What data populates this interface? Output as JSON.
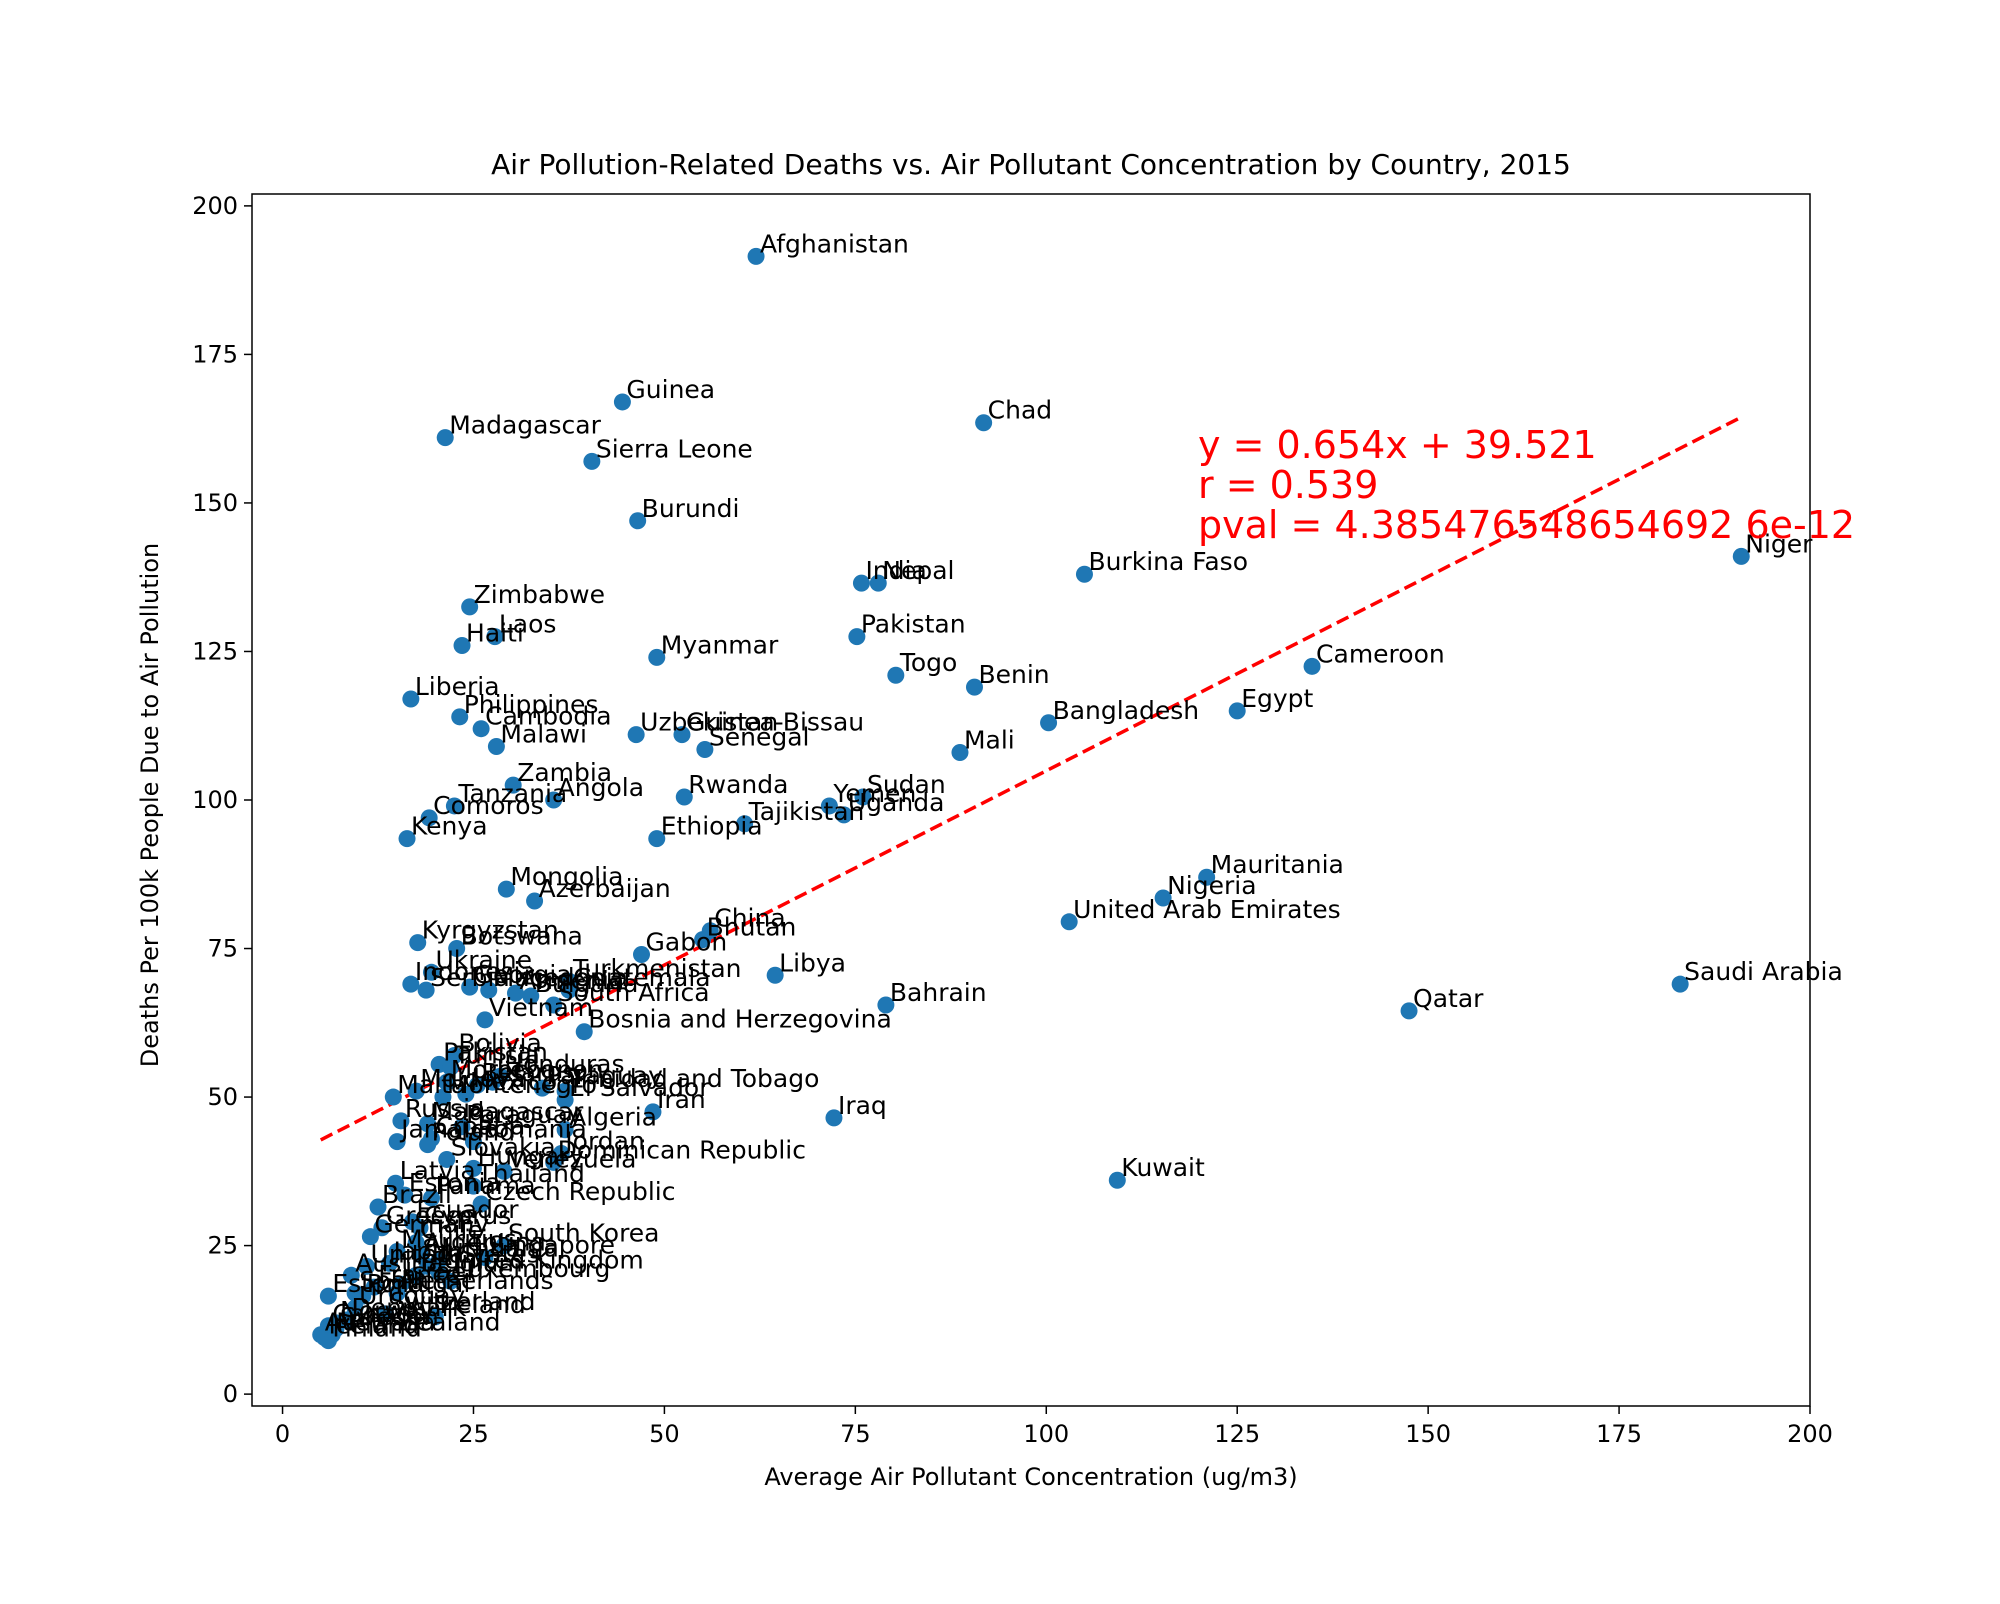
{
  "chart_data": {
    "type": "scatter",
    "title": "Air Pollution-Related Deaths vs. Air Pollutant Concentration by Country, 2015",
    "xlabel": "Average Air Pollutant Concentration (ug/m3)",
    "ylabel": "Deaths Per 100k People Due to Air Pollution",
    "xlim": [
      -4,
      200
    ],
    "ylim": [
      -2,
      202
    ],
    "xticks": [
      0,
      25,
      50,
      75,
      100,
      125,
      150,
      175,
      200
    ],
    "yticks": [
      0,
      25,
      50,
      75,
      100,
      125,
      150,
      175,
      200
    ],
    "grid": false,
    "point_color": "#1f77b4",
    "regression": {
      "slope": 0.654,
      "intercept": 39.521,
      "x_range": [
        5,
        191
      ],
      "color": "#ff0000",
      "style": "dashed",
      "annotation_lines": [
        "y = 0.654x + 39.521",
        "r = 0.539",
        "pval = 4.385476548654692 6e-12"
      ]
    },
    "points": [
      {
        "label": "Afghanistan",
        "x": 62.0,
        "y": 191.5
      },
      {
        "label": "Guinea",
        "x": 44.5,
        "y": 167.0
      },
      {
        "label": "Chad",
        "x": 91.8,
        "y": 163.5
      },
      {
        "label": "Madagascar",
        "x": 21.3,
        "y": 161.0
      },
      {
        "label": "Sierra Leone",
        "x": 40.5,
        "y": 157.0
      },
      {
        "label": "Burundi",
        "x": 46.5,
        "y": 147.0
      },
      {
        "label": "Burkina Faso",
        "x": 105.0,
        "y": 138.0
      },
      {
        "label": "Niger",
        "x": 191.0,
        "y": 141.0
      },
      {
        "label": "India",
        "x": 75.8,
        "y": 136.5
      },
      {
        "label": "Nepal",
        "x": 78.0,
        "y": 136.5
      },
      {
        "label": "Zimbabwe",
        "x": 24.5,
        "y": 132.5
      },
      {
        "label": "Pakistan",
        "x": 75.2,
        "y": 127.5
      },
      {
        "label": "Laos",
        "x": 27.8,
        "y": 127.5
      },
      {
        "label": "Haiti",
        "x": 23.5,
        "y": 126.0
      },
      {
        "label": "Myanmar",
        "x": 49.0,
        "y": 124.0
      },
      {
        "label": "Cameroon",
        "x": 134.8,
        "y": 122.5
      },
      {
        "label": "Togo",
        "x": 80.3,
        "y": 121.0
      },
      {
        "label": "Benin",
        "x": 90.6,
        "y": 119.0
      },
      {
        "label": "Liberia",
        "x": 16.8,
        "y": 117.0
      },
      {
        "label": "Egypt",
        "x": 125.0,
        "y": 115.0
      },
      {
        "label": "Philippines",
        "x": 23.2,
        "y": 114.0
      },
      {
        "label": "Bangladesh",
        "x": 100.3,
        "y": 113.0
      },
      {
        "label": "Cambodia",
        "x": 26.0,
        "y": 112.0
      },
      {
        "label": "Uzbekistan",
        "x": 46.3,
        "y": 111.0
      },
      {
        "label": "Guinea-Bissau",
        "x": 52.3,
        "y": 111.0
      },
      {
        "label": "Malawi",
        "x": 28.0,
        "y": 109.0
      },
      {
        "label": "Senegal",
        "x": 55.3,
        "y": 108.5
      },
      {
        "label": "Mali",
        "x": 88.7,
        "y": 108.0
      },
      {
        "label": "Zambia",
        "x": 30.2,
        "y": 102.5
      },
      {
        "label": "Sudan",
        "x": 76.0,
        "y": 100.5
      },
      {
        "label": "Rwanda",
        "x": 52.6,
        "y": 100.5
      },
      {
        "label": "Angola",
        "x": 35.5,
        "y": 100.0
      },
      {
        "label": "Yemen",
        "x": 71.6,
        "y": 99.0
      },
      {
        "label": "Tanzania",
        "x": 22.5,
        "y": 99.0
      },
      {
        "label": "Uganda",
        "x": 73.5,
        "y": 97.5
      },
      {
        "label": "Comoros",
        "x": 19.2,
        "y": 97.0
      },
      {
        "label": "Tajikistan",
        "x": 60.5,
        "y": 96.0
      },
      {
        "label": "Ethiopia",
        "x": 49.0,
        "y": 93.5
      },
      {
        "label": "Kenya",
        "x": 16.3,
        "y": 93.5
      },
      {
        "label": "Mauritania",
        "x": 121.0,
        "y": 87.0
      },
      {
        "label": "Mongolia",
        "x": 29.3,
        "y": 85.0
      },
      {
        "label": "Nigeria",
        "x": 115.3,
        "y": 83.5
      },
      {
        "label": "Azerbaijan",
        "x": 33.0,
        "y": 83.0
      },
      {
        "label": "United Arab Emirates",
        "x": 103.0,
        "y": 79.5
      },
      {
        "label": "China",
        "x": 56.0,
        "y": 78.0
      },
      {
        "label": "Bhutan",
        "x": 55.0,
        "y": 76.5
      },
      {
        "label": "Kyrgyzstan",
        "x": 17.7,
        "y": 76.0
      },
      {
        "label": "Botswana",
        "x": 22.8,
        "y": 75.0
      },
      {
        "label": "Gabon",
        "x": 47.0,
        "y": 74.0
      },
      {
        "label": "Ukraine",
        "x": 19.5,
        "y": 71.0
      },
      {
        "label": "Libya",
        "x": 64.5,
        "y": 70.5
      },
      {
        "label": "Turkmenistan",
        "x": 37.5,
        "y": 69.5
      },
      {
        "label": "Indonesia",
        "x": 16.8,
        "y": 69.0
      },
      {
        "label": "Saudi Arabia",
        "x": 183.0,
        "y": 69.0
      },
      {
        "label": "Georgia",
        "x": 24.5,
        "y": 68.5
      },
      {
        "label": "Serbia",
        "x": 18.8,
        "y": 68.0
      },
      {
        "label": "Macedonia",
        "x": 27.0,
        "y": 68.0
      },
      {
        "label": "Armenia",
        "x": 30.5,
        "y": 67.5
      },
      {
        "label": "Bulgaria",
        "x": 32.5,
        "y": 67.0
      },
      {
        "label": "Guatemala",
        "x": 37.5,
        "y": 68.0
      },
      {
        "label": "South Africa",
        "x": 35.5,
        "y": 65.5
      },
      {
        "label": "Bahrain",
        "x": 79.0,
        "y": 65.5
      },
      {
        "label": "Qatar",
        "x": 147.5,
        "y": 64.5
      },
      {
        "label": "Vietnam",
        "x": 26.5,
        "y": 63.0
      },
      {
        "label": "Bosnia and Herzegovina",
        "x": 39.5,
        "y": 61.0
      },
      {
        "label": "Bolivia",
        "x": 22.5,
        "y": 57.0
      },
      {
        "label": "Pakistan2",
        "x": 20.5,
        "y": 55.5
      },
      {
        "label": "Tunisia",
        "x": 22.0,
        "y": 55.0
      },
      {
        "label": "Honduras",
        "x": 28.5,
        "y": 53.5
      },
      {
        "label": "Morocco",
        "x": 21.5,
        "y": 52.5
      },
      {
        "label": "Lebanon",
        "x": 27.5,
        "y": 52.5
      },
      {
        "label": "Belarus",
        "x": 25.5,
        "y": 52.0
      },
      {
        "label": "Paraguay2",
        "x": 34.0,
        "y": 51.5
      },
      {
        "label": "Trinidad and Tobago",
        "x": 37.0,
        "y": 51.0
      },
      {
        "label": "Moldova",
        "x": 17.5,
        "y": 51.0
      },
      {
        "label": "Mexico",
        "x": 24.0,
        "y": 50.5
      },
      {
        "label": "Montenegro",
        "x": 21.0,
        "y": 50.0
      },
      {
        "label": "Malta",
        "x": 14.5,
        "y": 50.0
      },
      {
        "label": "El Salvador",
        "x": 37.0,
        "y": 49.5
      },
      {
        "label": "Iran",
        "x": 48.5,
        "y": 47.5
      },
      {
        "label": "Iraq",
        "x": 72.2,
        "y": 46.5
      },
      {
        "label": "Russia",
        "x": 15.5,
        "y": 46.0
      },
      {
        "label": "Madagascar2",
        "x": 19.0,
        "y": 45.5
      },
      {
        "label": "Paraguay",
        "x": 23.5,
        "y": 45.0
      },
      {
        "label": "Algeria",
        "x": 37.0,
        "y": 44.5
      },
      {
        "label": "Croatia",
        "x": 19.5,
        "y": 43.0
      },
      {
        "label": "Romania",
        "x": 25.0,
        "y": 42.5
      },
      {
        "label": "Jamaica",
        "x": 15.0,
        "y": 42.5
      },
      {
        "label": "Poland",
        "x": 19.0,
        "y": 42.0
      },
      {
        "label": "Jordan",
        "x": 36.5,
        "y": 40.5
      },
      {
        "label": "Slovakia",
        "x": 21.5,
        "y": 39.5
      },
      {
        "label": "Dominican Republic",
        "x": 35.5,
        "y": 39.0
      },
      {
        "label": "Hungary",
        "x": 25.0,
        "y": 38.0
      },
      {
        "label": "Venezuela",
        "x": 29.0,
        "y": 37.5
      },
      {
        "label": "Kuwait",
        "x": 109.3,
        "y": 36.0
      },
      {
        "label": "Latvia",
        "x": 14.8,
        "y": 35.5
      },
      {
        "label": "Thailand",
        "x": 25.0,
        "y": 35.0
      },
      {
        "label": "Estonia",
        "x": 16.0,
        "y": 33.5
      },
      {
        "label": "Czech Republic",
        "x": 26.0,
        "y": 32.0
      },
      {
        "label": "Panama",
        "x": 19.5,
        "y": 33.0
      },
      {
        "label": "Brazil",
        "x": 12.5,
        "y": 31.5
      },
      {
        "label": "Ecuador",
        "x": 17.0,
        "y": 29.0
      },
      {
        "label": "Greece",
        "x": 13.0,
        "y": 28.0
      },
      {
        "label": "Cyprus",
        "x": 18.0,
        "y": 28.0
      },
      {
        "label": "Germany",
        "x": 11.5,
        "y": 26.5
      },
      {
        "label": "South Korea",
        "x": 29.0,
        "y": 25.0
      },
      {
        "label": "Chile",
        "x": 17.5,
        "y": 25.5
      },
      {
        "label": "Mauritius",
        "x": 15.0,
        "y": 24.0
      },
      {
        "label": "Argentina",
        "x": 18.0,
        "y": 23.5
      },
      {
        "label": "Singapore",
        "x": 26.5,
        "y": 23.0
      },
      {
        "label": "Lithuania",
        "x": 20.5,
        "y": 22.5
      },
      {
        "label": "Japan",
        "x": 14.0,
        "y": 22.0
      },
      {
        "label": "United States",
        "x": 11.0,
        "y": 21.5
      },
      {
        "label": "Italy",
        "x": 19.0,
        "y": 21.5
      },
      {
        "label": "United Kingdom",
        "x": 20.5,
        "y": 20.5
      },
      {
        "label": "Belgium",
        "x": 17.5,
        "y": 20.0
      },
      {
        "label": "Austria",
        "x": 9.0,
        "y": 20.0
      },
      {
        "label": "Luxembourg",
        "x": 22.0,
        "y": 19.0
      },
      {
        "label": "Israel",
        "x": 15.5,
        "y": 18.5
      },
      {
        "label": "France",
        "x": 12.0,
        "y": 18.0
      },
      {
        "label": "Netherlands",
        "x": 15.0,
        "y": 17.0
      },
      {
        "label": "Spain",
        "x": 9.5,
        "y": 17.0
      },
      {
        "label": "Portugal",
        "x": 10.5,
        "y": 16.5
      },
      {
        "label": "Estonia2",
        "x": 6.0,
        "y": 16.5
      },
      {
        "label": "Uruguay",
        "x": 9.5,
        "y": 14.5
      },
      {
        "label": "Switzerland",
        "x": 13.5,
        "y": 13.5
      },
      {
        "label": "Ireland",
        "x": 20.0,
        "y": 13.0
      },
      {
        "label": "Denmark",
        "x": 8.5,
        "y": 12.5
      },
      {
        "label": "Norway",
        "x": 7.0,
        "y": 12.0
      },
      {
        "label": "Canada",
        "x": 6.0,
        "y": 11.5
      },
      {
        "label": "Sweden",
        "x": 7.0,
        "y": 11.0
      },
      {
        "label": "Australia",
        "x": 5.0,
        "y": 10.0
      },
      {
        "label": "New Zealand",
        "x": 6.5,
        "y": 10.0
      },
      {
        "label": "Iceland",
        "x": 5.5,
        "y": 9.5
      },
      {
        "label": "Finland",
        "x": 6.0,
        "y": 9.0
      }
    ]
  }
}
